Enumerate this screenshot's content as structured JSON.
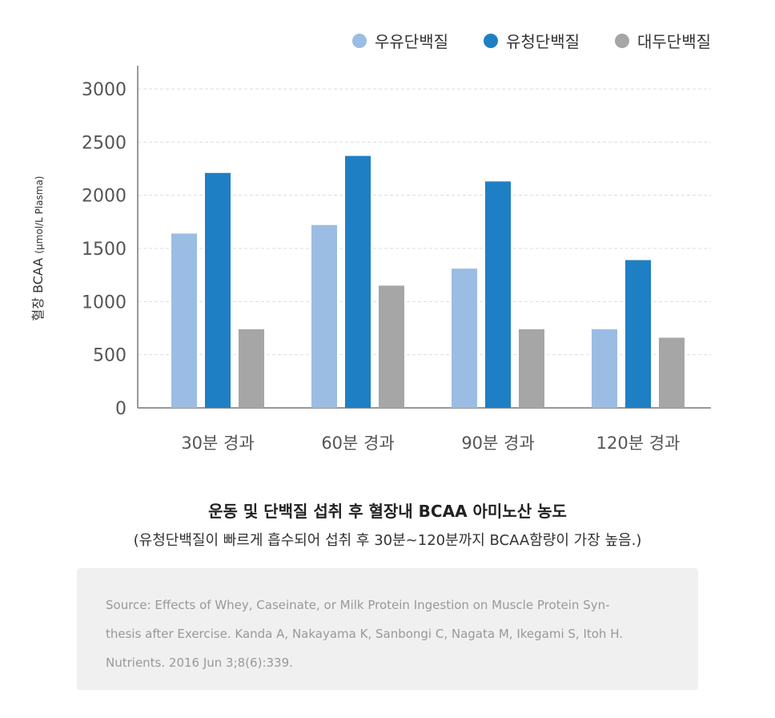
{
  "chart_data": {
    "type": "bar",
    "categories": [
      "30분 경과",
      "60분 경과",
      "90분 경과",
      "120분 경과"
    ],
    "series": [
      {
        "name": "우유단백질",
        "color": "#9bbde3",
        "values": [
          1640,
          1720,
          1310,
          740
        ]
      },
      {
        "name": "유청단백질",
        "color": "#1f7fc4",
        "values": [
          2210,
          2370,
          2130,
          1390
        ]
      },
      {
        "name": "대두단백질",
        "color": "#a6a6a6",
        "values": [
          740,
          1150,
          740,
          660
        ]
      }
    ],
    "ylabel_main": "혈장 BCAA",
    "ylabel_unit": "(µmol/L Plasma)",
    "ylim": [
      0,
      3000
    ],
    "yticks": [
      0,
      500,
      1000,
      1500,
      2000,
      2500,
      3000
    ],
    "grid": true,
    "legend": "top-right",
    "title": "운동 및 단백질 섭취 후 혈장내 BCAA 아미노산 농도",
    "subtitle": "(유청단백질이 빠르게 흡수되어 섭취 후 30분~120분까지 BCAA함량이 가장 높음.)"
  },
  "source": {
    "lines": [
      "Source: Effects of Whey, Caseinate, or Milk Protein Ingestion on Muscle Protein Syn-",
      "thesis after Exercise. Kanda A, Nakayama K, Sanbongi C, Nagata M, Ikegami S, Itoh H.",
      "Nutrients. 2016 Jun 3;8(6):339."
    ]
  }
}
